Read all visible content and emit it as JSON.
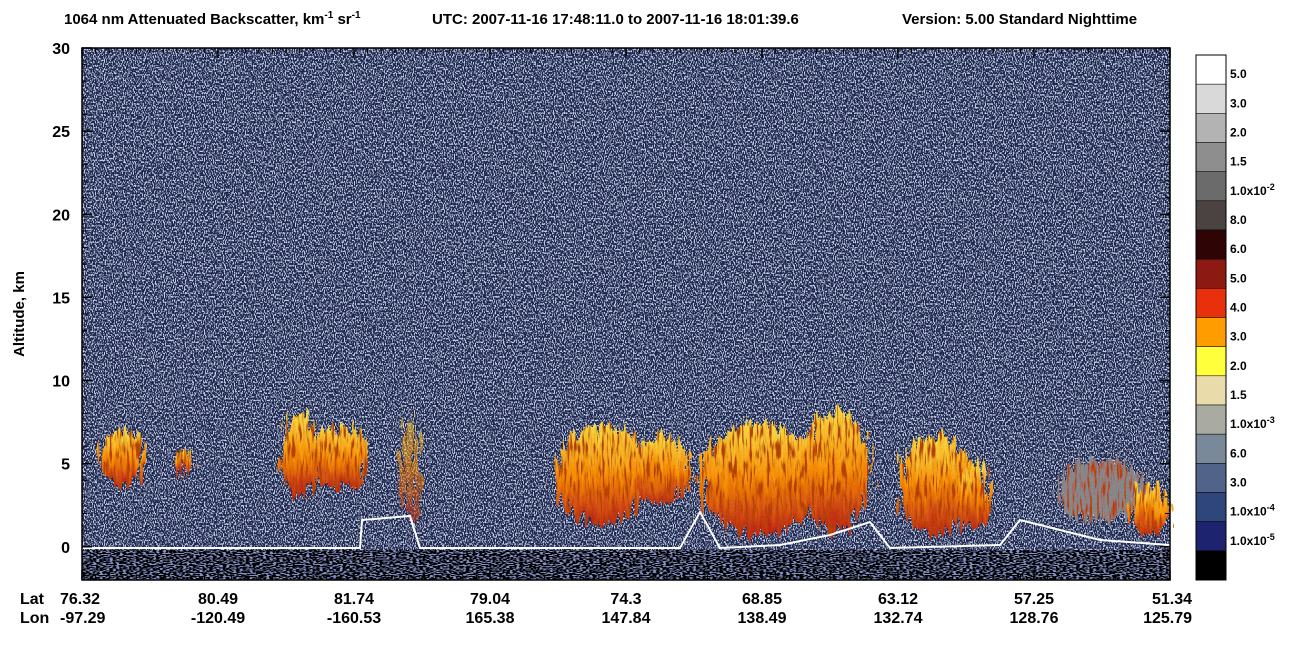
{
  "chart_data": {
    "type": "heatmap",
    "title": [
      "1064 nm Attenuated Backscatter, km",
      "-1",
      " sr",
      "-1"
    ],
    "time_range": "UTC:  2007-11-16 17:48:11.0  to  2007-11-16 18:01:39.6",
    "version": "Version: 5.00  Standard  Nighttime",
    "ylabel": "Altitude, km",
    "ylim": [
      -2,
      30
    ],
    "yticks": [
      0,
      5,
      10,
      15,
      20,
      25,
      30
    ],
    "row_labels": [
      "Lat",
      "Lon"
    ],
    "lat": [
      76.32,
      80.49,
      81.74,
      79.04,
      74.3,
      68.85,
      63.12,
      57.25,
      51.34
    ],
    "lon": [
      -97.29,
      -120.49,
      -160.53,
      165.38,
      147.84,
      138.49,
      132.74,
      128.76,
      125.79
    ],
    "colorbar": {
      "colors": [
        "#ffffff",
        "#d9d9d9",
        "#b3b3b3",
        "#8e8e8e",
        "#6b6b6b",
        "#4b4341",
        "#2e0504",
        "#8c1a12",
        "#e8300c",
        "#ff9c00",
        "#ffff3c",
        "#eadbab",
        "#a9aaa2",
        "#7a8999",
        "#52638a",
        "#2f467c",
        "#1e2370",
        "#000000"
      ],
      "labels": [
        "5.0",
        "3.0",
        "2.0",
        "1.5",
        {
          "base": "1.0x10",
          "exp": "-2"
        },
        "8.0",
        "6.0",
        "5.0",
        "4.0",
        "3.0",
        "2.0",
        "1.5",
        {
          "base": "1.0x10",
          "exp": "-3"
        },
        "6.0",
        "3.0",
        {
          "base": "1.0x10",
          "exp": "-4"
        },
        {
          "base": "1.0x10",
          "exp": "-5"
        }
      ]
    }
  }
}
